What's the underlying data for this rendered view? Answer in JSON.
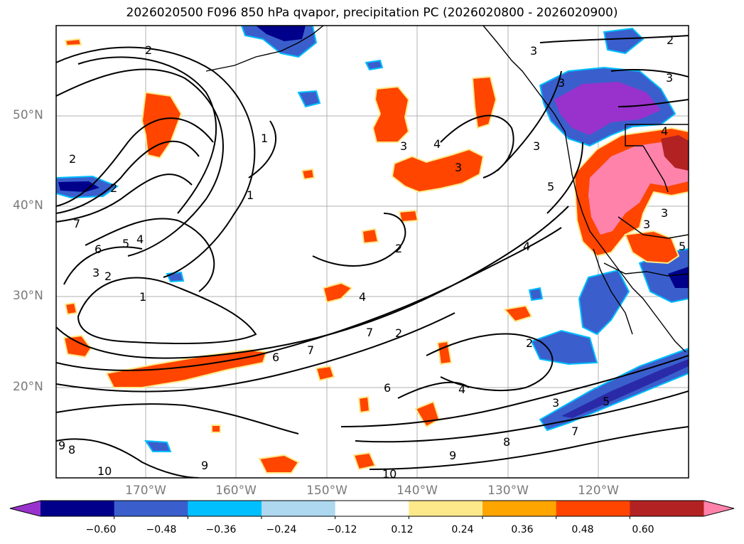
{
  "title": "2026020500 F096 850 hPa qvapor, precipitation PC (2026020800 - 2026020900)",
  "map": {
    "lat_labels": [
      "50°N",
      "40°N",
      "30°N",
      "20°N"
    ],
    "lon_labels": [
      "170°W",
      "160°W",
      "150°W",
      "140°W",
      "130°W",
      "120°W"
    ],
    "contour_labels": [
      "2",
      "2",
      "3",
      "3",
      "2",
      "3",
      "2",
      "1",
      "1",
      "3",
      "3",
      "3",
      "5",
      "3",
      "4",
      "4",
      "3",
      "2",
      "5",
      "4",
      "7",
      "6",
      "5",
      "4",
      "3",
      "2",
      "1",
      "2",
      "4",
      "7",
      "6",
      "7",
      "6",
      "4",
      "8",
      "9",
      "9",
      "8",
      "9",
      "10",
      "10",
      "2",
      "3",
      "5",
      "7"
    ]
  },
  "colorbar": {
    "ticks": [
      "−0.60",
      "−0.48",
      "−0.36",
      "−0.24",
      "−0.12",
      "0.12",
      "0.24",
      "0.36",
      "0.48",
      "0.60"
    ],
    "colors": [
      "#9932cc",
      "#00008b",
      "#3a5fcd",
      "#00bfff",
      "#add8f0",
      "#ffffff",
      "#fee98a",
      "#ffa500",
      "#ff4500",
      "#b22222",
      "#ff82ab"
    ]
  }
}
